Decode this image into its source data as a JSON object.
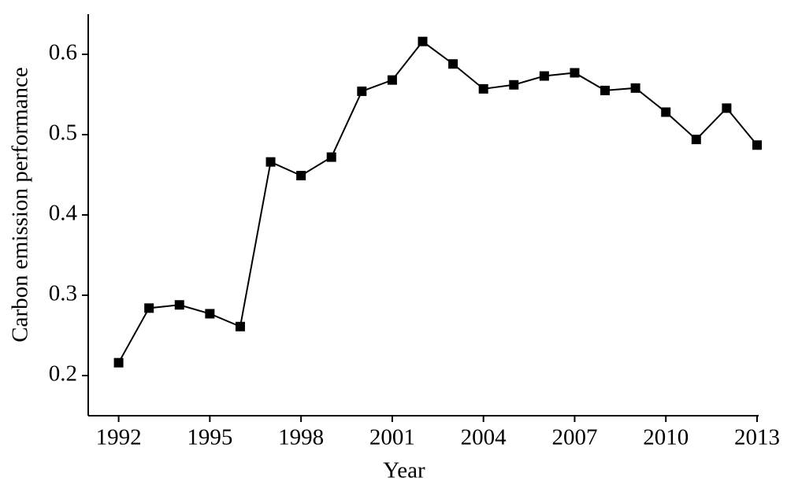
{
  "chart_data": {
    "type": "line",
    "x_label": "Year",
    "y_label": "Carbon emission performance",
    "x": [
      1992,
      1993,
      1994,
      1995,
      1996,
      1997,
      1998,
      1999,
      2000,
      2001,
      2002,
      2003,
      2004,
      2005,
      2006,
      2007,
      2008,
      2009,
      2010,
      2011,
      2012,
      2013
    ],
    "series": [
      {
        "name": null,
        "color": "#000000",
        "values": [
          0.216,
          0.284,
          0.288,
          0.277,
          0.261,
          0.466,
          0.449,
          0.472,
          0.554,
          0.568,
          0.616,
          0.588,
          0.557,
          0.562,
          0.573,
          0.577,
          0.555,
          0.558,
          0.528,
          0.494,
          0.533,
          0.487
        ]
      }
    ],
    "xlim": [
      1991,
      2013
    ],
    "ylim": [
      0.15,
      0.65
    ],
    "xticks": [
      1992,
      1995,
      1998,
      2001,
      2004,
      2007,
      2010,
      2013
    ],
    "yticks": [
      0.2,
      0.3,
      0.4,
      0.5,
      0.6
    ],
    "marker": "square"
  }
}
